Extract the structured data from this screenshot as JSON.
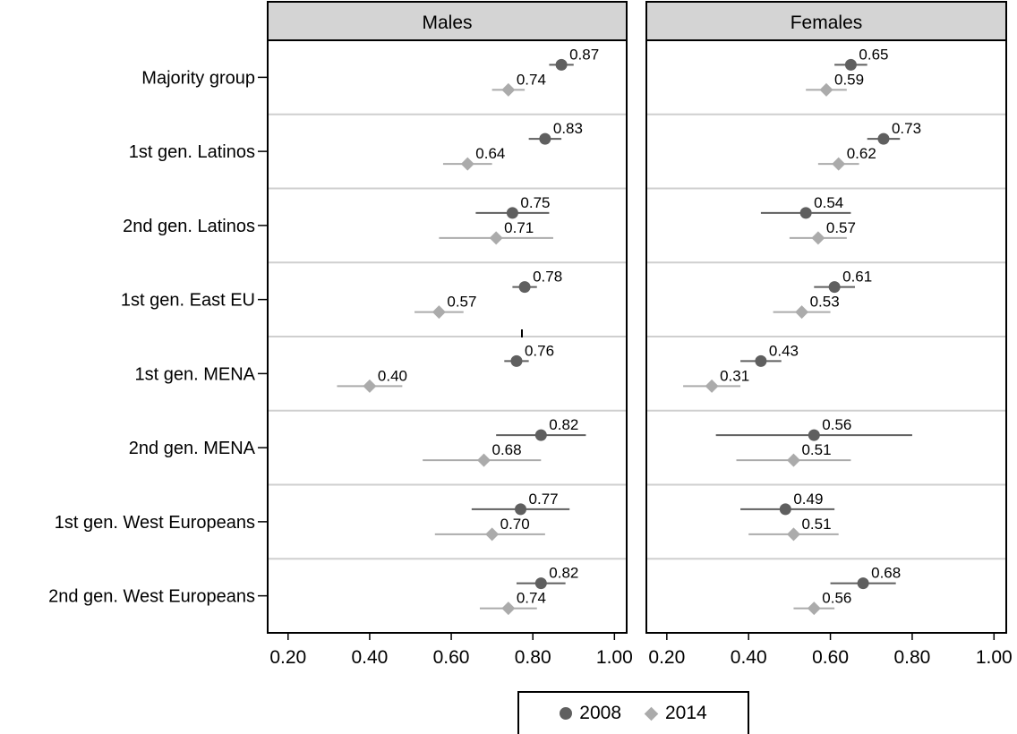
{
  "colors": {
    "s2008": "#5f5f5f",
    "s2014": "#ababab",
    "header_bg": "#d4d4d4",
    "separator": "#cfcfcf"
  },
  "chart_data": {
    "type": "scatter",
    "xlim": [
      0.15,
      1.03
    ],
    "ticks": [
      "0.20",
      "0.40",
      "0.60",
      "0.80",
      "1.00"
    ],
    "tick_values": [
      0.2,
      0.4,
      0.6,
      0.8,
      1.0
    ],
    "categories": [
      "Majority group",
      "1st gen. Latinos",
      "2nd gen. Latinos",
      "1st gen. East EU",
      "1st gen. MENA",
      "2nd gen. MENA",
      "1st gen. West Europeans",
      "2nd gen. West Europeans"
    ],
    "legend": {
      "placement": "bottom",
      "entries": [
        "2008",
        "2014"
      ]
    },
    "panels": [
      {
        "title": "Males",
        "series": [
          {
            "name": "2008",
            "marker": "circle",
            "values": [
              0.87,
              0.83,
              0.75,
              0.78,
              0.76,
              0.82,
              0.77,
              0.82
            ],
            "labels": [
              "0.87",
              "0.83",
              "0.75",
              "0.78",
              "0.76",
              "0.82",
              "0.77",
              "0.82"
            ],
            "ci_low": [
              0.84,
              0.79,
              0.66,
              0.75,
              0.73,
              0.71,
              0.65,
              0.76
            ],
            "ci_high": [
              0.9,
              0.87,
              0.84,
              0.81,
              0.79,
              0.93,
              0.89,
              0.88
            ]
          },
          {
            "name": "2014",
            "marker": "diamond",
            "values": [
              0.74,
              0.64,
              0.71,
              0.57,
              0.4,
              0.68,
              0.7,
              0.74
            ],
            "labels": [
              "0.74",
              "0.64",
              "0.71",
              "0.57",
              "0.40",
              "0.68",
              "0.70",
              "0.74"
            ],
            "ci_low": [
              0.7,
              0.58,
              0.57,
              0.51,
              0.32,
              0.53,
              0.56,
              0.67
            ],
            "ci_high": [
              0.78,
              0.7,
              0.85,
              0.63,
              0.48,
              0.82,
              0.83,
              0.81
            ]
          }
        ]
      },
      {
        "title": "Females",
        "series": [
          {
            "name": "2008",
            "marker": "circle",
            "values": [
              0.65,
              0.73,
              0.54,
              0.61,
              0.43,
              0.56,
              0.49,
              0.68
            ],
            "labels": [
              "0.65",
              "0.73",
              "0.54",
              "0.61",
              "0.43",
              "0.56",
              "0.49",
              "0.68"
            ],
            "ci_low": [
              0.61,
              0.69,
              0.43,
              0.56,
              0.38,
              0.32,
              0.38,
              0.6
            ],
            "ci_high": [
              0.69,
              0.77,
              0.65,
              0.66,
              0.48,
              0.8,
              0.61,
              0.76
            ]
          },
          {
            "name": "2014",
            "marker": "diamond",
            "values": [
              0.59,
              0.62,
              0.57,
              0.53,
              0.31,
              0.51,
              0.51,
              0.56
            ],
            "labels": [
              "0.59",
              "0.62",
              "0.57",
              "0.53",
              "0.31",
              "0.51",
              "0.51",
              "0.56"
            ],
            "ci_low": [
              0.54,
              0.57,
              0.5,
              0.46,
              0.24,
              0.37,
              0.4,
              0.51
            ],
            "ci_high": [
              0.64,
              0.67,
              0.64,
              0.6,
              0.38,
              0.65,
              0.62,
              0.61
            ]
          }
        ]
      }
    ]
  }
}
